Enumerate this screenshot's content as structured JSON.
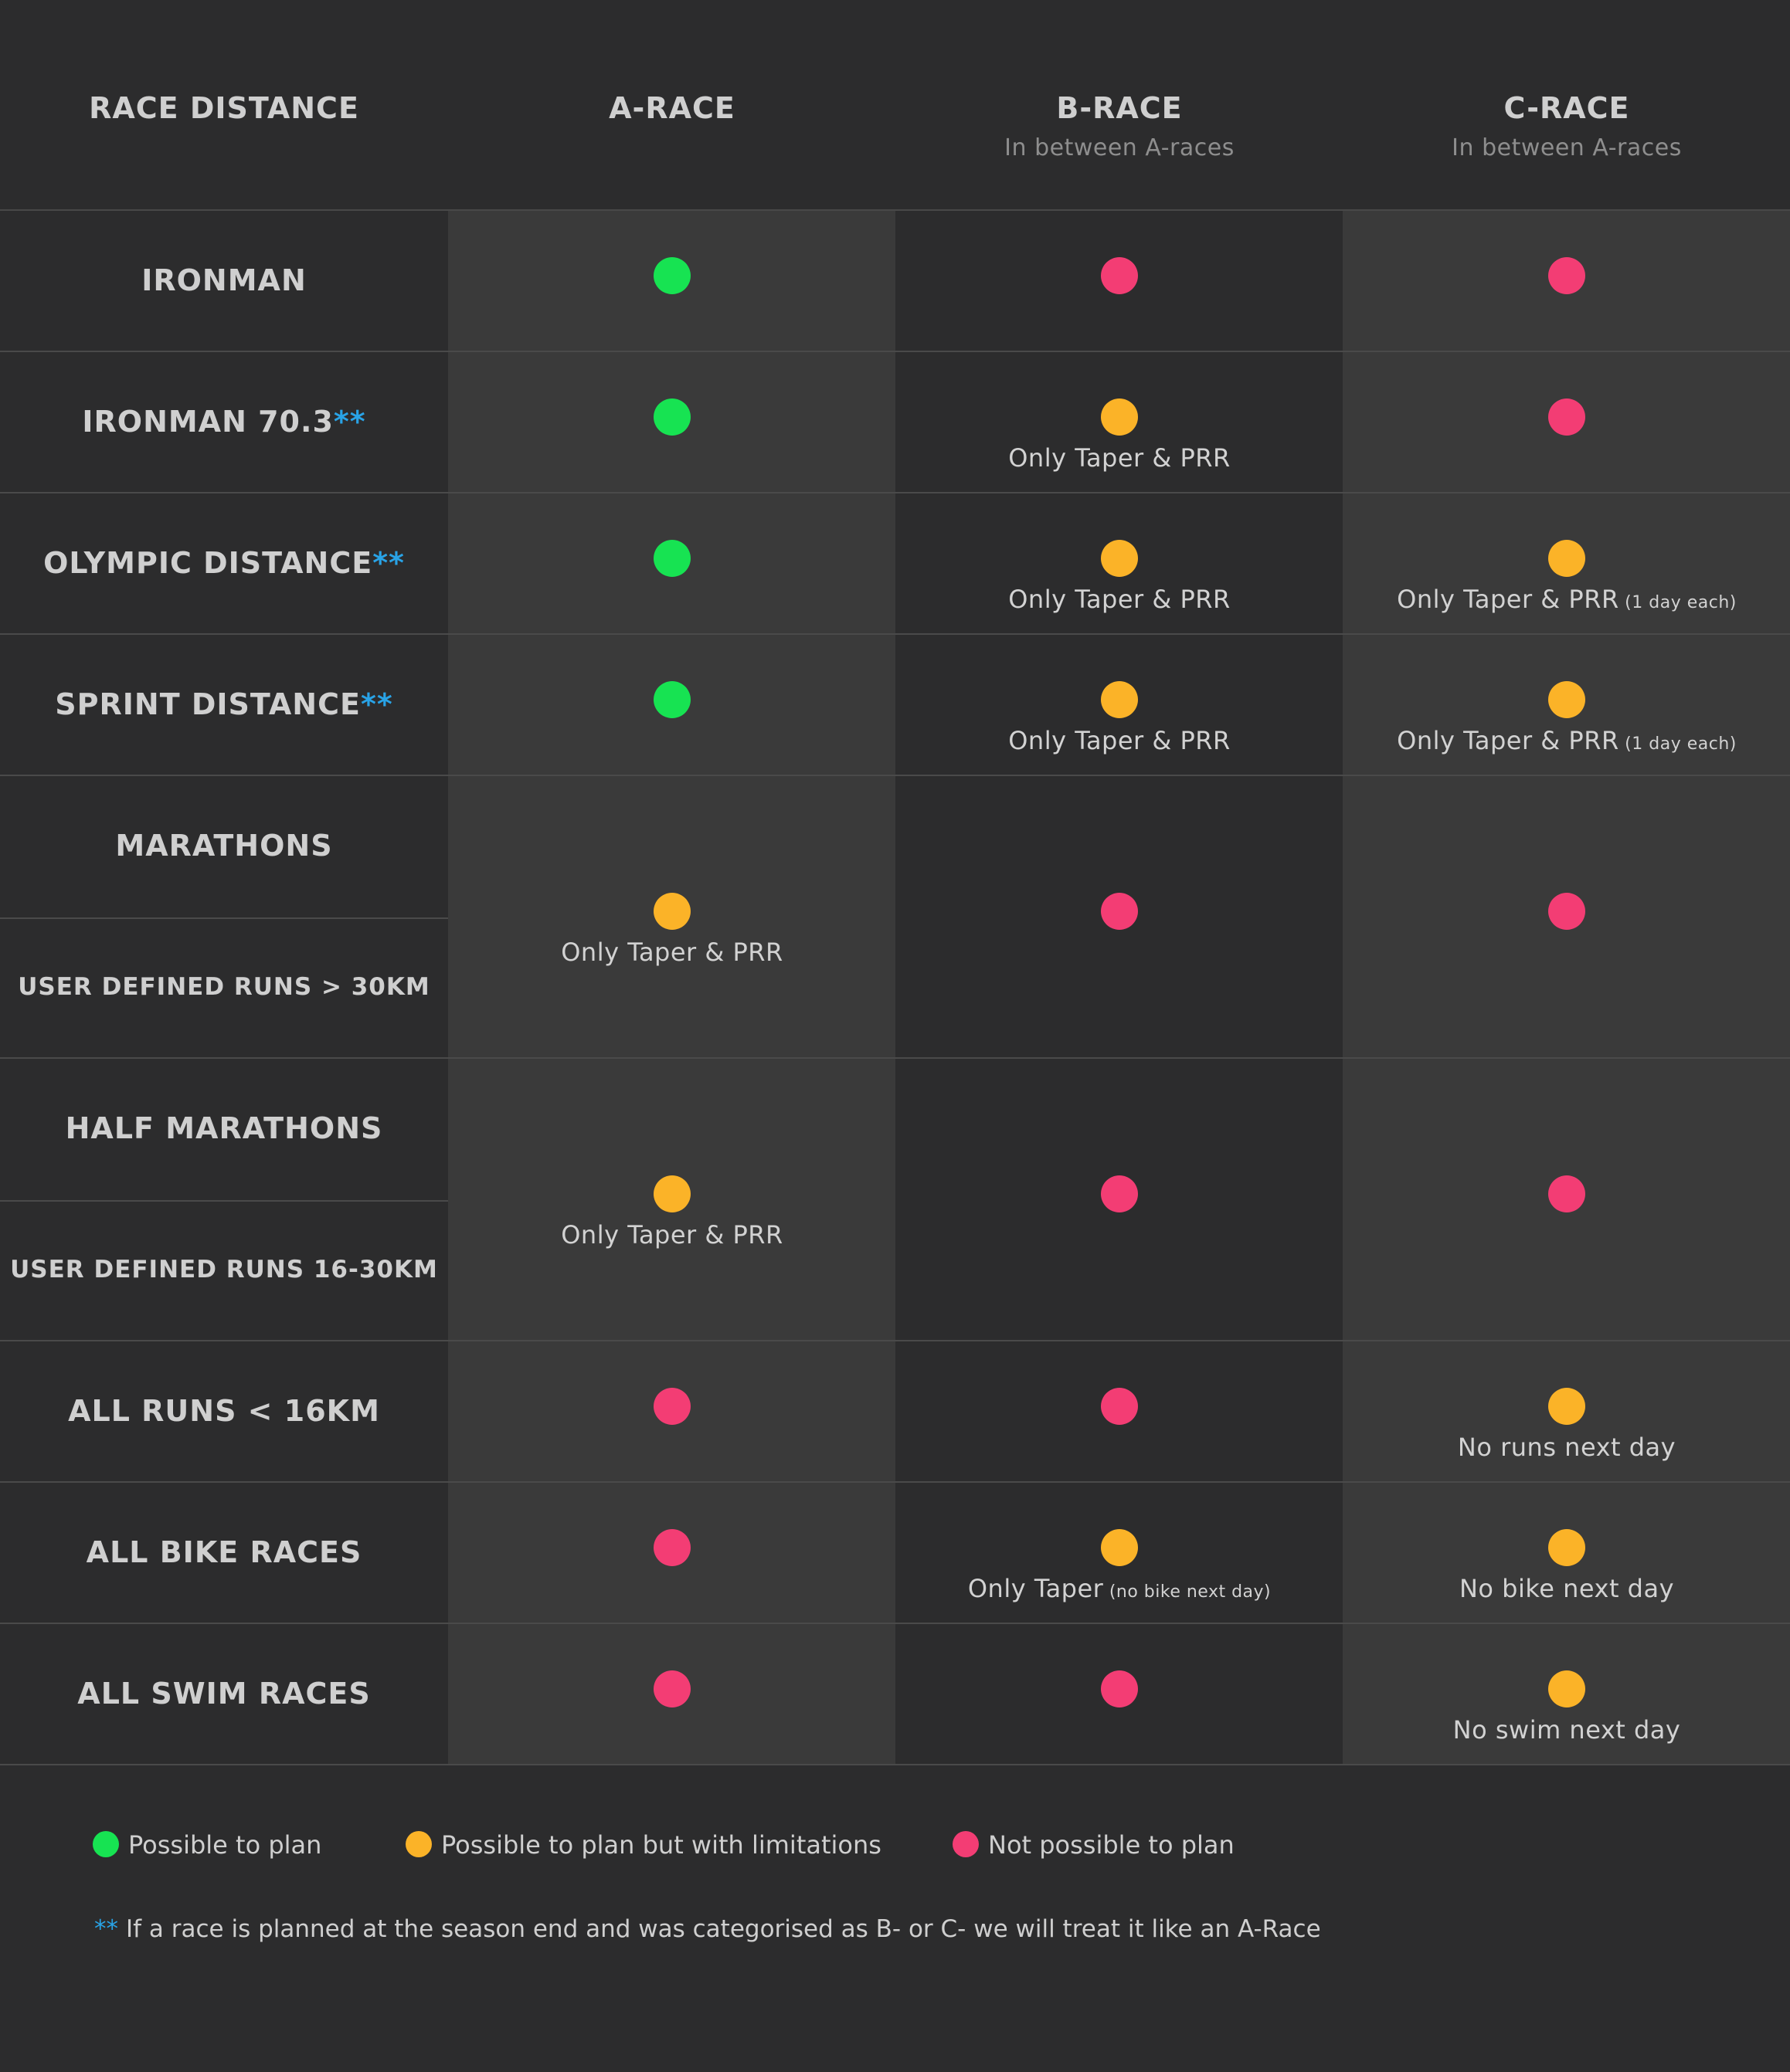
{
  "header": {
    "col0": {
      "title": "RACE DISTANCE",
      "subtitle": ""
    },
    "col1": {
      "title": "A-RACE",
      "subtitle": ""
    },
    "col2": {
      "title": "B-RACE",
      "subtitle": "In between A-races"
    },
    "col3": {
      "title": "C-RACE",
      "subtitle": "In between A-races"
    }
  },
  "colors": {
    "green": "#17e352",
    "yellow": "#fbb328",
    "red": "#f33d74",
    "stars": "#29a3e6"
  },
  "stars": "**",
  "rows": [
    {
      "label": "IRONMAN",
      "stars": "",
      "cells": [
        {
          "status": "green",
          "note": "",
          "note_small": ""
        },
        {
          "status": "red",
          "note": "",
          "note_small": ""
        },
        {
          "status": "red",
          "note": "",
          "note_small": ""
        }
      ]
    },
    {
      "label": "IRONMAN 70.3",
      "stars": "**",
      "cells": [
        {
          "status": "green",
          "note": "",
          "note_small": ""
        },
        {
          "status": "yellow",
          "note": "Only Taper & PRR",
          "note_small": ""
        },
        {
          "status": "red",
          "note": "",
          "note_small": ""
        }
      ]
    },
    {
      "label": "OLYMPIC DISTANCE",
      "stars": "**",
      "cells": [
        {
          "status": "green",
          "note": "",
          "note_small": ""
        },
        {
          "status": "yellow",
          "note": "Only Taper & PRR",
          "note_small": ""
        },
        {
          "status": "yellow",
          "note": "Only Taper & PRR",
          "note_small": "(1 day each)"
        }
      ]
    },
    {
      "label": "SPRINT DISTANCE",
      "stars": "**",
      "cells": [
        {
          "status": "green",
          "note": "",
          "note_small": ""
        },
        {
          "status": "yellow",
          "note": "Only Taper & PRR",
          "note_small": ""
        },
        {
          "status": "yellow",
          "note": "Only Taper & PRR",
          "note_small": "(1 day each)"
        }
      ]
    },
    {
      "label": "MARATHONS",
      "label2": "USER DEFINED RUNS > 30KM",
      "cells": [
        {
          "status": "yellow",
          "note": "Only Taper & PRR",
          "note_small": ""
        },
        {
          "status": "red",
          "note": "",
          "note_small": ""
        },
        {
          "status": "red",
          "note": "",
          "note_small": ""
        }
      ]
    },
    {
      "label": "HALF MARATHONS",
      "label2": "USER DEFINED RUNS 16-30KM",
      "cells": [
        {
          "status": "yellow",
          "note": "Only Taper & PRR",
          "note_small": ""
        },
        {
          "status": "red",
          "note": "",
          "note_small": ""
        },
        {
          "status": "red",
          "note": "",
          "note_small": ""
        }
      ]
    },
    {
      "label": "ALL RUNS < 16KM",
      "stars": "",
      "cells": [
        {
          "status": "red",
          "note": "",
          "note_small": ""
        },
        {
          "status": "red",
          "note": "",
          "note_small": ""
        },
        {
          "status": "yellow",
          "note": "No runs next day",
          "note_small": ""
        }
      ]
    },
    {
      "label": "ALL BIKE RACES",
      "stars": "",
      "cells": [
        {
          "status": "red",
          "note": "",
          "note_small": ""
        },
        {
          "status": "yellow",
          "note": "Only Taper",
          "note_small": "(no bike next day)"
        },
        {
          "status": "yellow",
          "note": "No bike next day",
          "note_small": ""
        }
      ]
    },
    {
      "label": "ALL SWIM RACES",
      "stars": "",
      "cells": [
        {
          "status": "red",
          "note": "",
          "note_small": ""
        },
        {
          "status": "red",
          "note": "",
          "note_small": ""
        },
        {
          "status": "yellow",
          "note": "No swim next day",
          "note_small": ""
        }
      ]
    }
  ],
  "legend": {
    "green": "Possible to plan",
    "yellow": "Possible to plan but with limitations",
    "red": "Not possible to plan"
  },
  "footnote": {
    "stars": "**",
    "text": "If a race is planned at the season end and was categorised as B- or C- we will treat it like an A-Race"
  }
}
